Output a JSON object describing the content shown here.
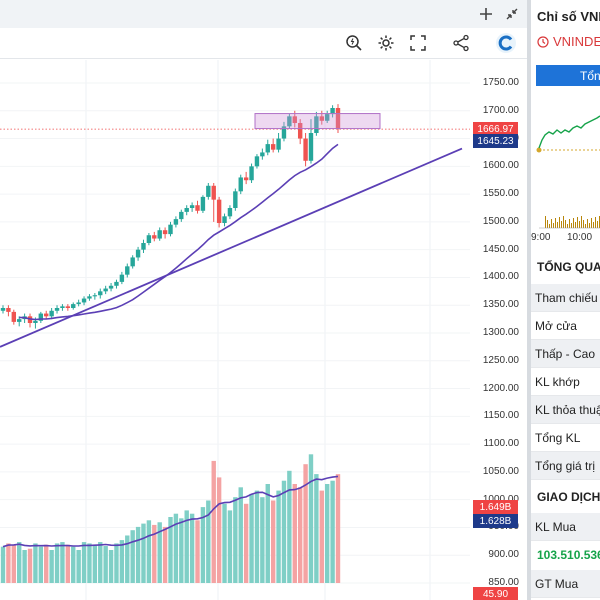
{
  "chart_data": {
    "type": "candlestick",
    "price_axis": {
      "ticks": [
        "1750.00",
        "1700.00",
        "1650.00",
        "1600.00",
        "1550.00",
        "1500.00",
        "1450.00",
        "1400.00",
        "1350.00",
        "1300.00",
        "1250.00",
        "1200.00",
        "1150.00",
        "1100.00",
        "1050.00",
        "1000.00",
        "950.00",
        "900.00",
        "850.00"
      ],
      "range": [
        850,
        1750
      ]
    },
    "last_price": "1666.97",
    "ma_price": "1645.23",
    "volume_tag_1": "1.649B",
    "volume_tag_2": "1.628B",
    "bottom_tag": "45.90",
    "candles": [
      [
        1340,
        1345,
        1335,
        1350
      ],
      [
        1345,
        1338,
        1330,
        1350
      ],
      [
        1338,
        1320,
        1315,
        1342
      ],
      [
        1320,
        1325,
        1312,
        1330
      ],
      [
        1325,
        1330,
        1318,
        1335
      ],
      [
        1330,
        1318,
        1310,
        1335
      ],
      [
        1318,
        1322,
        1308,
        1328
      ],
      [
        1322,
        1335,
        1318,
        1338
      ],
      [
        1335,
        1330,
        1325,
        1340
      ],
      [
        1330,
        1340,
        1325,
        1345
      ],
      [
        1340,
        1345,
        1335,
        1350
      ],
      [
        1345,
        1348,
        1340,
        1352
      ],
      [
        1348,
        1345,
        1340,
        1352
      ],
      [
        1345,
        1352,
        1342,
        1355
      ],
      [
        1352,
        1355,
        1348,
        1360
      ],
      [
        1355,
        1362,
        1350,
        1366
      ],
      [
        1362,
        1366,
        1358,
        1370
      ],
      [
        1366,
        1368,
        1360,
        1372
      ],
      [
        1368,
        1375,
        1362,
        1380
      ],
      [
        1375,
        1380,
        1370,
        1385
      ],
      [
        1380,
        1385,
        1375,
        1390
      ],
      [
        1385,
        1392,
        1380,
        1396
      ],
      [
        1392,
        1405,
        1388,
        1410
      ],
      [
        1405,
        1420,
        1400,
        1425
      ],
      [
        1420,
        1436,
        1416,
        1440
      ],
      [
        1436,
        1450,
        1430,
        1455
      ],
      [
        1450,
        1462,
        1444,
        1468
      ],
      [
        1462,
        1476,
        1458,
        1480
      ],
      [
        1476,
        1470,
        1465,
        1482
      ],
      [
        1470,
        1485,
        1466,
        1490
      ],
      [
        1485,
        1478,
        1470,
        1490
      ],
      [
        1478,
        1495,
        1474,
        1500
      ],
      [
        1495,
        1505,
        1490,
        1510
      ],
      [
        1505,
        1518,
        1500,
        1522
      ],
      [
        1518,
        1525,
        1512,
        1530
      ],
      [
        1525,
        1530,
        1518,
        1535
      ],
      [
        1530,
        1520,
        1515,
        1538
      ],
      [
        1520,
        1545,
        1516,
        1548
      ],
      [
        1545,
        1565,
        1540,
        1570
      ],
      [
        1565,
        1540,
        1500,
        1570
      ],
      [
        1540,
        1498,
        1490,
        1545
      ],
      [
        1498,
        1510,
        1492,
        1515
      ],
      [
        1510,
        1525,
        1505,
        1530
      ],
      [
        1525,
        1555,
        1520,
        1560
      ],
      [
        1555,
        1580,
        1550,
        1585
      ],
      [
        1580,
        1575,
        1568,
        1590
      ],
      [
        1575,
        1600,
        1570,
        1605
      ],
      [
        1600,
        1618,
        1596,
        1622
      ],
      [
        1618,
        1625,
        1612,
        1632
      ],
      [
        1625,
        1640,
        1620,
        1648
      ],
      [
        1640,
        1630,
        1625,
        1650
      ],
      [
        1630,
        1650,
        1625,
        1660
      ],
      [
        1650,
        1672,
        1645,
        1680
      ],
      [
        1672,
        1690,
        1668,
        1695
      ],
      [
        1690,
        1678,
        1670,
        1700
      ],
      [
        1678,
        1650,
        1640,
        1685
      ],
      [
        1650,
        1610,
        1600,
        1660
      ],
      [
        1610,
        1660,
        1605,
        1685
      ],
      [
        1660,
        1690,
        1655,
        1698
      ],
      [
        1690,
        1682,
        1675,
        1700
      ],
      [
        1682,
        1694,
        1678,
        1700
      ],
      [
        1694,
        1705,
        1688,
        1710
      ],
      [
        1705,
        1667,
        1660,
        1712
      ]
    ],
    "volumes": [
      0.55,
      0.6,
      0.58,
      0.62,
      0.5,
      0.52,
      0.6,
      0.55,
      0.58,
      0.5,
      0.6,
      0.62,
      0.58,
      0.55,
      0.5,
      0.62,
      0.6,
      0.58,
      0.62,
      0.56,
      0.5,
      0.6,
      0.65,
      0.72,
      0.8,
      0.85,
      0.9,
      0.95,
      0.88,
      0.92,
      0.85,
      1.0,
      1.05,
      0.98,
      1.1,
      1.05,
      0.95,
      1.15,
      1.25,
      1.85,
      1.6,
      1.2,
      1.1,
      1.3,
      1.45,
      1.2,
      1.35,
      1.4,
      1.3,
      1.5,
      1.25,
      1.4,
      1.55,
      1.7,
      1.5,
      1.45,
      1.8,
      1.95,
      1.65,
      1.4,
      1.5,
      1.55,
      1.649
    ]
  },
  "toolbar": {
    "icons": [
      "plus-icon",
      "collapse-icon",
      "zoom-icon",
      "gear-icon",
      "fullscreen-icon",
      "share-icon",
      "brand-icon"
    ]
  },
  "right_panel": {
    "title": "Chỉ số VNI",
    "ticker": "VNINDE",
    "tab_label": "Tổn",
    "intraday_times": [
      "9:00",
      "10:00"
    ],
    "summary_heading": "TỔNG QUA",
    "rows": [
      "Tham chiếu",
      "Mở cửa",
      "Thấp - Cao",
      "KL khớp",
      "KL thỏa thuậ",
      "Tổng KL",
      "Tổng giá trị"
    ],
    "trade_heading": "GIAO DỊCH",
    "buy_volume_label": "KL Mua",
    "buy_volume_value": "103.510.536",
    "buy_value_label": "GT Mua"
  },
  "colors": {
    "up": "#26a69a",
    "down": "#ef5350",
    "ma": "#5b3fb5",
    "price_tag": "#ef4444",
    "ma_tag": "#1e3a8a",
    "accent": "#1e73d8"
  }
}
